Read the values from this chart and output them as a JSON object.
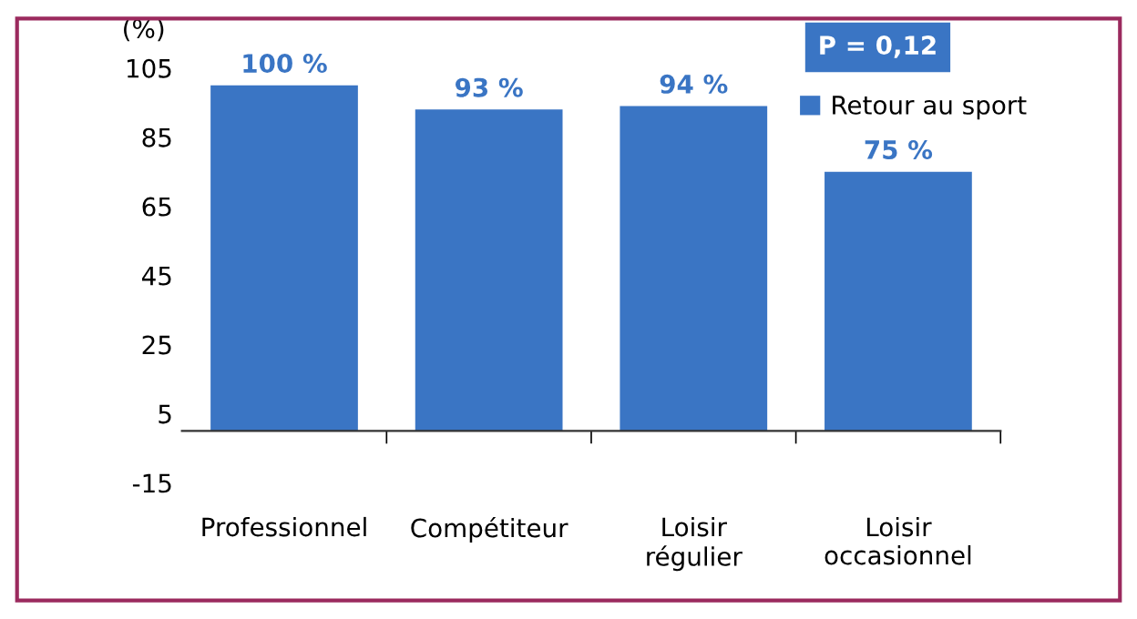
{
  "chart_data": {
    "type": "bar",
    "ylabel": "(%)",
    "categories": [
      "Professionnel",
      "Compétiteur",
      "Loisir\nrégulier",
      "Loisir\noccasionnel"
    ],
    "series": [
      {
        "name": "Retour au sport",
        "color": "#3a75c4",
        "values": [
          100,
          93,
          94,
          75
        ],
        "value_labels": [
          "100 %",
          "93 %",
          "94 %",
          "75 %"
        ]
      }
    ],
    "ylim": [
      -15,
      105
    ],
    "yticks": [
      -15,
      5,
      25,
      45,
      65,
      85,
      105
    ],
    "annotations": [
      "P = 0,12"
    ],
    "legend": "top right",
    "grid": false
  }
}
